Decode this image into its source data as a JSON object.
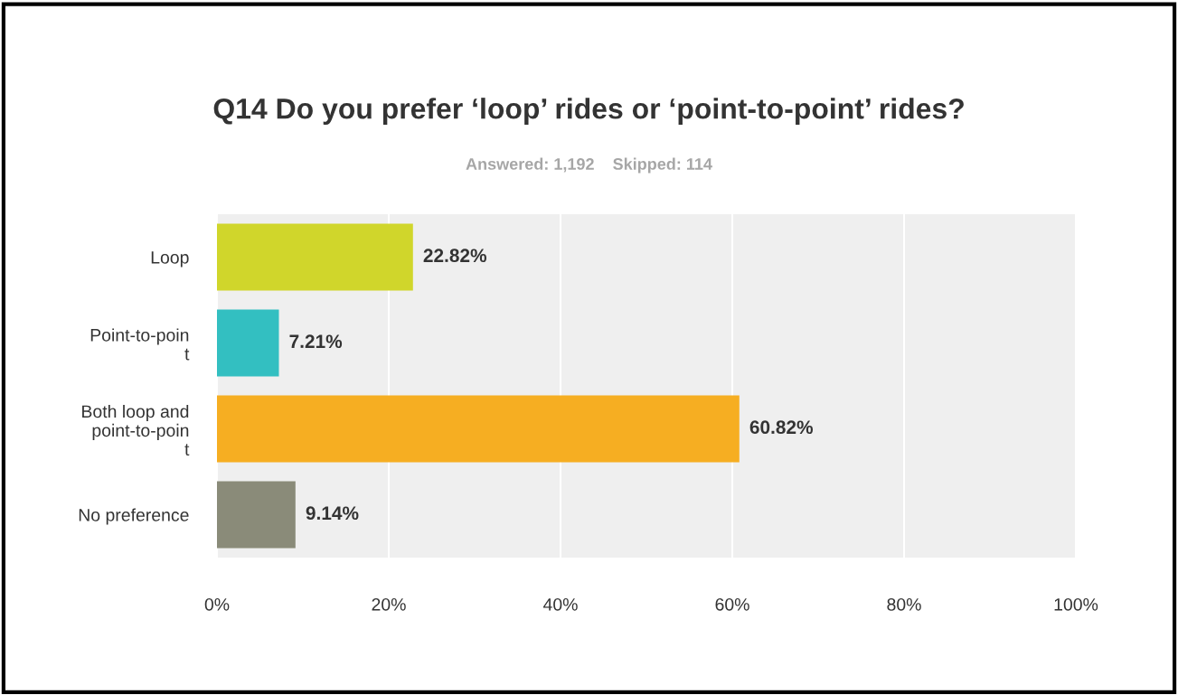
{
  "chart_data": {
    "type": "bar",
    "orientation": "horizontal",
    "title": "Q14 Do you prefer ‘loop’ rides or ‘point-to-point’ rides?",
    "subtitle": "Answered: 1,192    Skipped: 114",
    "categories": [
      "Loop",
      "Point-to-poin\nt",
      "Both loop and\npoint-to-poin\nt",
      "No preference"
    ],
    "values": [
      22.82,
      7.21,
      60.82,
      9.14
    ],
    "colors": [
      "#d0d62b",
      "#33bfc1",
      "#f6ae22",
      "#8a8b79"
    ],
    "value_labels": [
      "22.82%",
      "7.21%",
      "60.82%",
      "9.14%"
    ],
    "xlim": [
      0,
      100
    ],
    "xticks": [
      {
        "value": 0,
        "label": "0%"
      },
      {
        "value": 20,
        "label": "20%"
      },
      {
        "value": 40,
        "label": "40%"
      },
      {
        "value": 60,
        "label": "60%"
      },
      {
        "value": 80,
        "label": "80%"
      },
      {
        "value": 100,
        "label": "100%"
      }
    ],
    "grid": "x"
  }
}
